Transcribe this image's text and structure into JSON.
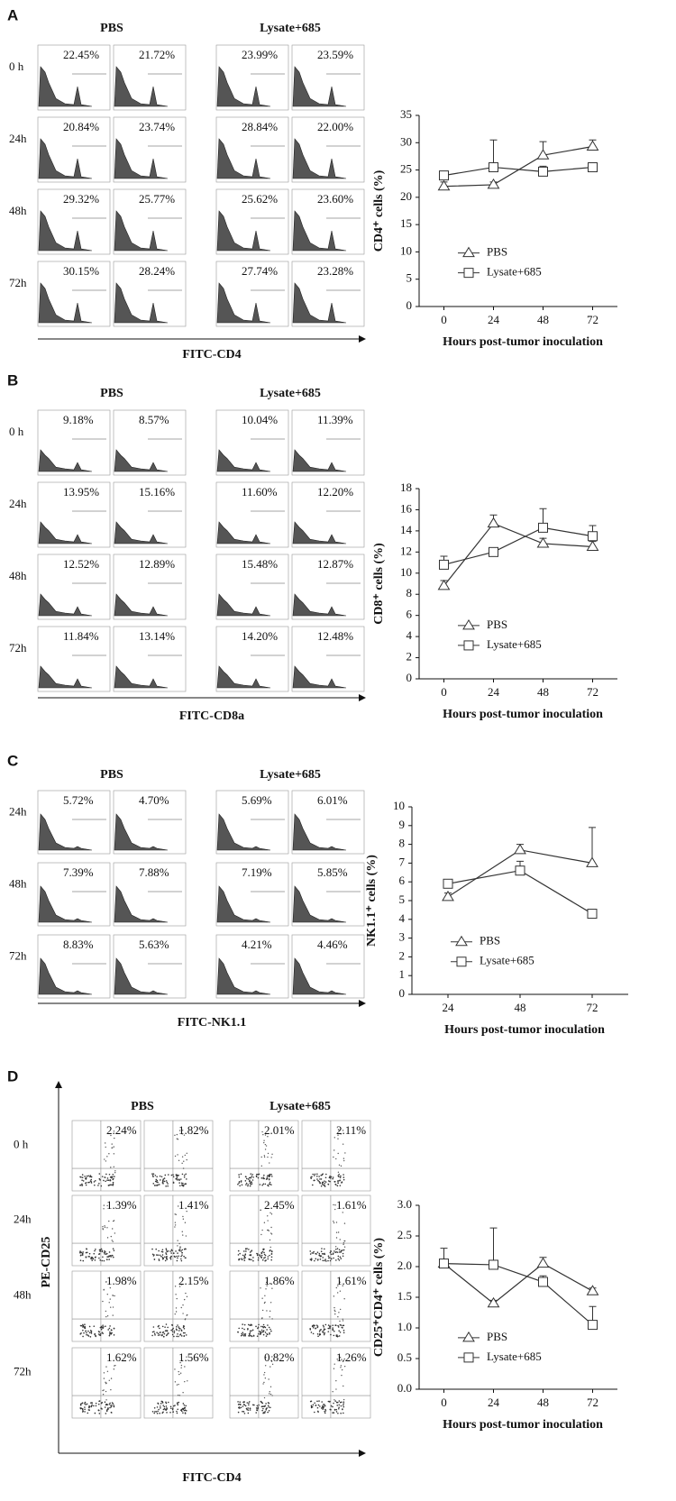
{
  "flow_panels": [
    {
      "label": "A",
      "groups": [
        "PBS",
        "Lysate+685"
      ],
      "rows": [
        "0 h",
        "24h",
        "48h",
        "72h"
      ],
      "percentages": [
        [
          "22.45%",
          "21.72%",
          "23.99%",
          "23.59%"
        ],
        [
          "20.84%",
          "23.74%",
          "28.84%",
          "22.00%"
        ],
        [
          "29.32%",
          "25.77%",
          "25.62%",
          "23.60%"
        ],
        [
          "30.15%",
          "28.24%",
          "27.74%",
          "23.28%"
        ]
      ],
      "x_label": "FITC-CD4"
    },
    {
      "label": "B",
      "groups": [
        "PBS",
        "Lysate+685"
      ],
      "rows": [
        "0 h",
        "24h",
        "48h",
        "72h"
      ],
      "percentages": [
        [
          "9.18%",
          "8.57%",
          "10.04%",
          "11.39%"
        ],
        [
          "13.95%",
          "15.16%",
          "11.60%",
          "12.20%"
        ],
        [
          "12.52%",
          "12.89%",
          "15.48%",
          "12.87%"
        ],
        [
          "11.84%",
          "13.14%",
          "14.20%",
          "12.48%"
        ]
      ],
      "x_label": "FITC-CD8a"
    },
    {
      "label": "C",
      "groups": [
        "PBS",
        "Lysate+685"
      ],
      "rows": [
        "24h",
        "48h",
        "72h"
      ],
      "percentages": [
        [
          "5.72%",
          "4.70%",
          "5.69%",
          "6.01%"
        ],
        [
          "7.39%",
          "7.88%",
          "7.19%",
          "5.85%"
        ],
        [
          "8.83%",
          "5.63%",
          "4.21%",
          "4.46%"
        ]
      ],
      "x_label": "FITC-NK1.1"
    },
    {
      "label": "D",
      "groups": [
        "PBS",
        "Lysate+685"
      ],
      "rows": [
        "0 h",
        "24h",
        "48h",
        "72h"
      ],
      "percentages": [
        [
          "2.24%",
          "1.82%",
          "2.01%",
          "2.11%"
        ],
        [
          "1.39%",
          "1.41%",
          "2.45%",
          "1.61%"
        ],
        [
          "1.98%",
          "2.15%",
          "1.86%",
          "1.61%"
        ],
        [
          "1.62%",
          "1.56%",
          "0.82%",
          "1.26%"
        ]
      ],
      "x_label": "FITC-CD4",
      "y_label": "PE-CD25"
    }
  ],
  "chart_data": [
    {
      "type": "line",
      "y_label": "CD4⁺ cells (%)",
      "x_label": "Hours post-tumor inoculation",
      "categories": [
        "0",
        "24",
        "48",
        "72"
      ],
      "ylim": [
        0,
        35
      ],
      "yticks": [
        0,
        5,
        10,
        15,
        20,
        25,
        30,
        35
      ],
      "series": [
        {
          "name": "PBS",
          "marker": "triangle",
          "color": "#333333",
          "values": [
            22,
            22.3,
            27.7,
            29.3
          ],
          "errors": [
            0.8,
            0.5,
            2.5,
            1.2
          ]
        },
        {
          "name": "Lysate+685",
          "marker": "square",
          "color": "#333333",
          "values": [
            24,
            25.5,
            24.7,
            25.5
          ],
          "errors": [
            0.5,
            5,
            1,
            0.8
          ]
        }
      ]
    },
    {
      "type": "line",
      "y_label": "CD8⁺ cells (%)",
      "x_label": "Hours post-tumor inoculation",
      "categories": [
        "0",
        "24",
        "48",
        "72"
      ],
      "ylim": [
        0,
        18
      ],
      "yticks": [
        0,
        2,
        4,
        6,
        8,
        10,
        12,
        14,
        16,
        18
      ],
      "series": [
        {
          "name": "PBS",
          "marker": "triangle",
          "color": "#333333",
          "values": [
            8.8,
            14.7,
            12.8,
            12.5
          ],
          "errors": [
            0.5,
            0.8,
            0.5,
            0.5
          ]
        },
        {
          "name": "Lysate+685",
          "marker": "square",
          "color": "#333333",
          "values": [
            10.8,
            12,
            14.3,
            13.5
          ],
          "errors": [
            0.8,
            0.3,
            1.8,
            1
          ]
        }
      ]
    },
    {
      "type": "line",
      "y_label": "NK1.1⁺ cells (%)",
      "x_label": "Hours post-tumor inoculation",
      "categories": [
        "24",
        "48",
        "72"
      ],
      "ylim": [
        0,
        10
      ],
      "yticks": [
        0,
        1,
        2,
        3,
        4,
        5,
        6,
        7,
        8,
        9,
        10
      ],
      "series": [
        {
          "name": "PBS",
          "marker": "triangle",
          "color": "#333333",
          "values": [
            5.2,
            7.7,
            7.0
          ],
          "errors": [
            0.2,
            0.3,
            1.9
          ]
        },
        {
          "name": "Lysate+685",
          "marker": "square",
          "color": "#333333",
          "values": [
            5.9,
            6.6,
            4.3
          ],
          "errors": [
            0.2,
            0.5,
            0.1
          ]
        }
      ]
    },
    {
      "type": "line",
      "y_label": "CD25⁺CD4⁺ cells (%)",
      "x_label": "Hours post-tumor inoculation",
      "categories": [
        "0",
        "24",
        "48",
        "72"
      ],
      "ylim": [
        0,
        3
      ],
      "yticks": [
        {
          "value": 0,
          "label": "0.0"
        },
        {
          "value": 0.5,
          "label": "0.5"
        },
        {
          "value": 1,
          "label": "1.0"
        },
        {
          "value": 1.5,
          "label": "1.5"
        },
        {
          "value": 2,
          "label": "2.0"
        },
        {
          "value": 2.5,
          "label": "2.5"
        },
        {
          "value": 3,
          "label": "3.0"
        }
      ],
      "series": [
        {
          "name": "PBS",
          "marker": "triangle",
          "color": "#333333",
          "values": [
            2.05,
            1.4,
            2.05,
            1.6
          ],
          "errors": [
            0.05,
            0.05,
            0.1,
            0.05
          ]
        },
        {
          "name": "Lysate+685",
          "marker": "square",
          "color": "#333333",
          "values": [
            2.05,
            2.03,
            1.75,
            1.05
          ],
          "errors": [
            0.25,
            0.6,
            0.1,
            0.3
          ]
        }
      ]
    }
  ]
}
